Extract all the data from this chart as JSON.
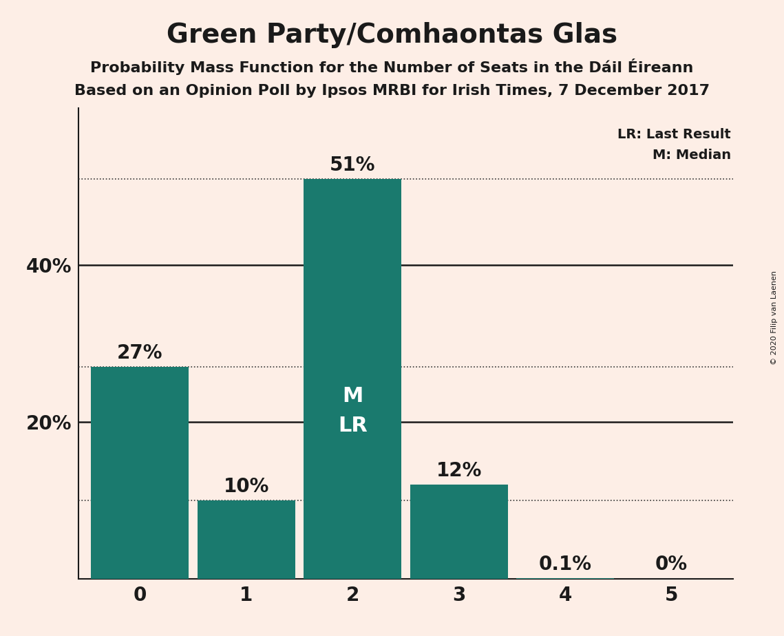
{
  "title": "Green Party/Comhaontas Glas",
  "subtitle1": "Probability Mass Function for the Number of Seats in the Dáil Éireann",
  "subtitle2": "Based on an Opinion Poll by Ipsos MRBI for Irish Times, 7 December 2017",
  "copyright": "© 2020 Filip van Laenen",
  "categories": [
    0,
    1,
    2,
    3,
    4,
    5
  ],
  "values": [
    27,
    10,
    51,
    12,
    0.1,
    0
  ],
  "labels": [
    "27%",
    "10%",
    "51%",
    "12%",
    "0.1%",
    "0%"
  ],
  "bar_color": "#1a7a6e",
  "background_color": "#fdeee6",
  "label_color_outside": "#1a1a1a",
  "label_color_inside": "#ffffff",
  "ylim": [
    0,
    60
  ],
  "dotted_lines": [
    10,
    27,
    51
  ],
  "solid_lines": [
    20,
    40
  ],
  "legend_text1": "LR: Last Result",
  "legend_text2": "M: Median",
  "title_fontsize": 28,
  "subtitle_fontsize": 16,
  "axis_fontsize": 20,
  "label_fontsize": 20,
  "ml_label_fontsize": 22
}
